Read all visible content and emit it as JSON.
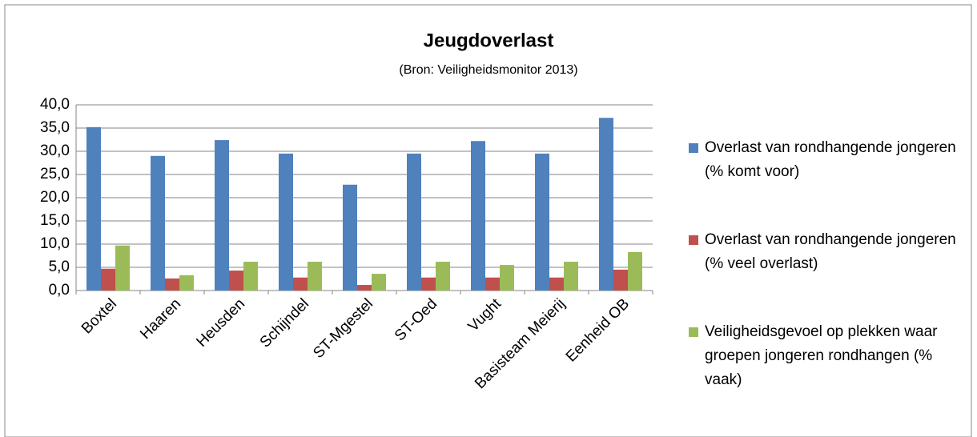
{
  "chart_data": {
    "type": "bar",
    "title": "Jeugdoverlast",
    "subtitle": "(Bron: Veiligheidsmonitor 2013)",
    "categories": [
      "Boxtel",
      "Haaren",
      "Heusden",
      "Schijndel",
      "ST-Mgestel",
      "ST-Oed",
      "Vught",
      "Basisteam Meierij",
      "Eenheid OB"
    ],
    "series": [
      {
        "name": "Overlast van rondhangende jongeren (% komt voor)",
        "color": "#4f81bd",
        "values": [
          35.2,
          29.0,
          32.4,
          29.5,
          22.8,
          29.5,
          32.2,
          29.5,
          37.2
        ]
      },
      {
        "name": "Overlast van rondhangende jongeren (% veel overlast)",
        "color": "#c0504d",
        "values": [
          4.7,
          2.6,
          4.3,
          2.8,
          1.2,
          2.8,
          2.8,
          2.8,
          4.5
        ]
      },
      {
        "name": "Veiligheidsgevoel op plekken waar groepen jongeren rondhangen (% vaak)",
        "color": "#9bbb59",
        "values": [
          9.7,
          3.3,
          6.2,
          6.2,
          3.6,
          6.2,
          5.5,
          6.2,
          8.3
        ]
      }
    ],
    "ylim": [
      0,
      40
    ],
    "yticks": [
      {
        "value": 0,
        "label": "0,0"
      },
      {
        "value": 5,
        "label": "5,0"
      },
      {
        "value": 10,
        "label": "10,0"
      },
      {
        "value": 15,
        "label": "15,0"
      },
      {
        "value": 20,
        "label": "20,0"
      },
      {
        "value": 25,
        "label": "25,0"
      },
      {
        "value": 30,
        "label": "30,0"
      },
      {
        "value": 35,
        "label": "35,0"
      },
      {
        "value": 40,
        "label": "40,0"
      }
    ],
    "grid": true,
    "legend": "right"
  }
}
